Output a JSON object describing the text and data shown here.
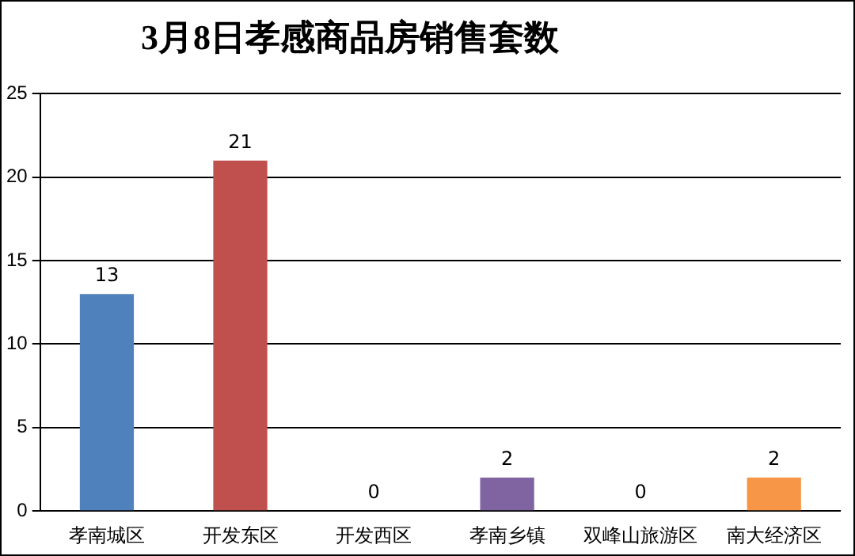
{
  "chart_data": {
    "type": "bar",
    "title": "3月8日孝感商品房销售套数",
    "categories": [
      "孝南城区",
      "开发东区",
      "开发西区",
      "孝南乡镇",
      "双峰山旅游区",
      "南大经济区"
    ],
    "values": [
      13,
      21,
      0,
      2,
      0,
      2
    ],
    "colors": [
      "#4f81bd",
      "#c0504d",
      "#9bbb59",
      "#8064a2",
      "#4bacc6",
      "#f79646"
    ],
    "ylim": [
      0,
      25
    ],
    "yticks": [
      0,
      5,
      10,
      15,
      20,
      25
    ],
    "grid": "y",
    "data_labels": true,
    "legend": false
  }
}
